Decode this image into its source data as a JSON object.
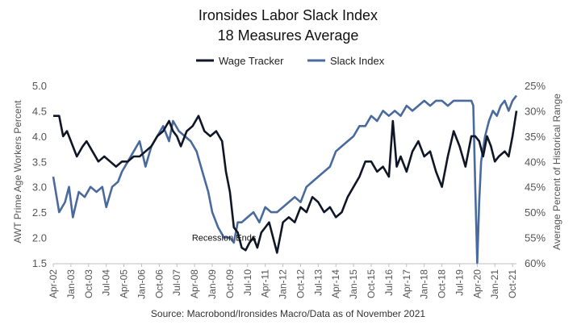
{
  "chart_data": {
    "type": "line",
    "title": "Ironsides Labor Slack Index",
    "subtitle": "18 Measures Average",
    "source": "Source: Macrobond/Ironsides Macro/Data as of November 2021",
    "annotation": "Recession Ends",
    "annotation_point": {
      "date": "2009-07",
      "value": 2.0
    },
    "left_axis": {
      "label": "AWT Prime Age Workers Percent",
      "range": [
        1.5,
        5.0
      ],
      "ticks": [
        "5.0",
        "4.5",
        "4.0",
        "3.5",
        "3.0",
        "2.5",
        "2.0",
        "1.5"
      ],
      "tick_values": [
        5.0,
        4.5,
        4.0,
        3.5,
        3.0,
        2.5,
        2.0,
        1.5
      ]
    },
    "right_axis": {
      "label": "Average Percent of Historical Range",
      "inverted": true,
      "range": [
        25,
        60
      ],
      "ticks": [
        "25%",
        "30%",
        "35%",
        "40%",
        "45%",
        "50%",
        "55%",
        "60%"
      ],
      "tick_values": [
        25,
        30,
        35,
        40,
        45,
        50,
        55,
        60
      ]
    },
    "x_axis": {
      "range": [
        "2002-04",
        "2021-12"
      ],
      "ticks": [
        "Apr-02",
        "Jan-03",
        "Oct-03",
        "Jul-04",
        "Apr-05",
        "Jan-06",
        "Oct-06",
        "Jul-07",
        "Apr-08",
        "Jan-09",
        "Oct-09",
        "Jul-10",
        "Apr-11",
        "Jan-12",
        "Oct-12",
        "Jul-13",
        "Apr-14",
        "Jan-15",
        "Oct-15",
        "Jul-16",
        "Apr-17",
        "Jan-18",
        "Oct-18",
        "Jul-19",
        "Apr-20",
        "Jan-21",
        "Oct-21"
      ],
      "tick_dates": [
        "2002-04",
        "2003-01",
        "2003-10",
        "2004-07",
        "2005-04",
        "2006-01",
        "2006-10",
        "2007-07",
        "2008-04",
        "2009-01",
        "2009-10",
        "2010-07",
        "2011-04",
        "2012-01",
        "2012-10",
        "2013-07",
        "2014-04",
        "2015-01",
        "2015-10",
        "2016-07",
        "2017-04",
        "2018-01",
        "2018-10",
        "2019-07",
        "2020-04",
        "2021-01",
        "2021-10"
      ]
    },
    "legend_position": "top-center",
    "grid": false,
    "series": [
      {
        "name": "Wage Tracker",
        "axis": "left",
        "color": "#0f1626",
        "points": [
          [
            "2002-04",
            4.4
          ],
          [
            "2002-07",
            4.4
          ],
          [
            "2002-09",
            4.0
          ],
          [
            "2002-11",
            4.1
          ],
          [
            "2003-01",
            3.9
          ],
          [
            "2003-04",
            3.6
          ],
          [
            "2003-07",
            3.8
          ],
          [
            "2003-09",
            3.9
          ],
          [
            "2003-12",
            3.7
          ],
          [
            "2004-03",
            3.5
          ],
          [
            "2004-06",
            3.6
          ],
          [
            "2004-09",
            3.5
          ],
          [
            "2004-12",
            3.4
          ],
          [
            "2005-03",
            3.5
          ],
          [
            "2005-06",
            3.5
          ],
          [
            "2005-09",
            3.6
          ],
          [
            "2005-12",
            3.6
          ],
          [
            "2006-03",
            3.7
          ],
          [
            "2006-06",
            3.8
          ],
          [
            "2006-09",
            4.0
          ],
          [
            "2006-12",
            4.1
          ],
          [
            "2007-03",
            4.3
          ],
          [
            "2007-05",
            4.1
          ],
          [
            "2007-07",
            4.0
          ],
          [
            "2007-09",
            3.8
          ],
          [
            "2007-12",
            4.1
          ],
          [
            "2008-03",
            4.2
          ],
          [
            "2008-06",
            4.4
          ],
          [
            "2008-09",
            4.1
          ],
          [
            "2008-12",
            4.0
          ],
          [
            "2009-03",
            4.1
          ],
          [
            "2009-06",
            3.9
          ],
          [
            "2009-08",
            3.3
          ],
          [
            "2009-10",
            2.9
          ],
          [
            "2009-12",
            2.2
          ],
          [
            "2010-02",
            2.1
          ],
          [
            "2010-04",
            1.8
          ],
          [
            "2010-06",
            1.75
          ],
          [
            "2010-08",
            1.9
          ],
          [
            "2010-10",
            2.0
          ],
          [
            "2010-12",
            1.8
          ],
          [
            "2011-02",
            2.1
          ],
          [
            "2011-04",
            2.2
          ],
          [
            "2011-06",
            2.3
          ],
          [
            "2011-08",
            2.0
          ],
          [
            "2011-10",
            1.7
          ],
          [
            "2012-01",
            2.3
          ],
          [
            "2012-04",
            2.4
          ],
          [
            "2012-07",
            2.3
          ],
          [
            "2012-10",
            2.6
          ],
          [
            "2013-01",
            2.5
          ],
          [
            "2013-04",
            2.8
          ],
          [
            "2013-07",
            2.7
          ],
          [
            "2013-10",
            2.5
          ],
          [
            "2014-01",
            2.6
          ],
          [
            "2014-04",
            2.4
          ],
          [
            "2014-07",
            2.5
          ],
          [
            "2014-10",
            2.8
          ],
          [
            "2015-01",
            3.0
          ],
          [
            "2015-04",
            3.2
          ],
          [
            "2015-07",
            3.5
          ],
          [
            "2015-10",
            3.5
          ],
          [
            "2016-01",
            3.3
          ],
          [
            "2016-04",
            3.4
          ],
          [
            "2016-07",
            3.2
          ],
          [
            "2016-09",
            4.3
          ],
          [
            "2016-11",
            3.4
          ],
          [
            "2017-01",
            3.6
          ],
          [
            "2017-04",
            3.3
          ],
          [
            "2017-07",
            3.7
          ],
          [
            "2017-10",
            3.9
          ],
          [
            "2018-01",
            3.6
          ],
          [
            "2018-04",
            3.7
          ],
          [
            "2018-07",
            3.3
          ],
          [
            "2018-10",
            3.0
          ],
          [
            "2019-01",
            3.6
          ],
          [
            "2019-04",
            4.1
          ],
          [
            "2019-07",
            3.8
          ],
          [
            "2019-10",
            3.4
          ],
          [
            "2020-01",
            4.0
          ],
          [
            "2020-03",
            4.0
          ],
          [
            "2020-05",
            3.9
          ],
          [
            "2020-07",
            3.6
          ],
          [
            "2020-09",
            4.0
          ],
          [
            "2020-11",
            3.8
          ],
          [
            "2021-01",
            3.5
          ],
          [
            "2021-03",
            3.6
          ],
          [
            "2021-06",
            3.7
          ],
          [
            "2021-08",
            3.6
          ],
          [
            "2021-10",
            4.0
          ],
          [
            "2021-12",
            4.5
          ]
        ]
      },
      {
        "name": "Slack Index",
        "axis": "right",
        "color": "#4a6a9e",
        "points": [
          [
            "2002-04",
            43
          ],
          [
            "2002-07",
            50
          ],
          [
            "2002-10",
            48
          ],
          [
            "2002-12",
            45
          ],
          [
            "2003-02",
            51
          ],
          [
            "2003-05",
            46
          ],
          [
            "2003-08",
            47
          ],
          [
            "2003-11",
            45
          ],
          [
            "2004-02",
            46
          ],
          [
            "2004-05",
            45
          ],
          [
            "2004-07",
            49
          ],
          [
            "2004-10",
            45
          ],
          [
            "2005-01",
            44
          ],
          [
            "2005-03",
            42
          ],
          [
            "2005-06",
            40
          ],
          [
            "2005-09",
            38
          ],
          [
            "2005-12",
            36
          ],
          [
            "2006-03",
            41
          ],
          [
            "2006-06",
            37
          ],
          [
            "2006-09",
            35
          ],
          [
            "2006-12",
            33
          ],
          [
            "2007-03",
            36
          ],
          [
            "2007-05",
            32
          ],
          [
            "2007-08",
            34
          ],
          [
            "2007-11",
            35
          ],
          [
            "2008-02",
            36
          ],
          [
            "2008-05",
            38
          ],
          [
            "2008-08",
            42
          ],
          [
            "2008-11",
            46
          ],
          [
            "2009-01",
            50
          ],
          [
            "2009-04",
            53
          ],
          [
            "2009-07",
            55
          ],
          [
            "2009-10",
            55
          ],
          [
            "2009-12",
            56
          ],
          [
            "2010-02",
            52
          ],
          [
            "2010-04",
            52
          ],
          [
            "2010-07",
            51
          ],
          [
            "2010-10",
            50
          ],
          [
            "2011-01",
            52
          ],
          [
            "2011-04",
            49
          ],
          [
            "2011-07",
            50
          ],
          [
            "2011-10",
            50
          ],
          [
            "2012-01",
            49
          ],
          [
            "2012-04",
            48
          ],
          [
            "2012-07",
            47
          ],
          [
            "2012-10",
            48
          ],
          [
            "2013-01",
            45
          ],
          [
            "2013-04",
            44
          ],
          [
            "2013-07",
            43
          ],
          [
            "2013-10",
            42
          ],
          [
            "2014-01",
            41
          ],
          [
            "2014-04",
            38
          ],
          [
            "2014-07",
            37
          ],
          [
            "2014-10",
            36
          ],
          [
            "2015-01",
            35
          ],
          [
            "2015-04",
            33
          ],
          [
            "2015-07",
            33
          ],
          [
            "2015-10",
            31
          ],
          [
            "2016-01",
            32
          ],
          [
            "2016-04",
            30
          ],
          [
            "2016-07",
            31
          ],
          [
            "2016-10",
            30
          ],
          [
            "2017-01",
            31
          ],
          [
            "2017-04",
            29
          ],
          [
            "2017-07",
            30
          ],
          [
            "2017-10",
            29
          ],
          [
            "2018-01",
            28
          ],
          [
            "2018-04",
            29
          ],
          [
            "2018-07",
            28
          ],
          [
            "2018-10",
            28
          ],
          [
            "2019-01",
            29
          ],
          [
            "2019-04",
            28
          ],
          [
            "2019-07",
            28
          ],
          [
            "2019-10",
            28
          ],
          [
            "2020-01",
            28
          ],
          [
            "2020-02",
            29
          ],
          [
            "2020-03",
            45
          ],
          [
            "2020-04",
            60
          ],
          [
            "2020-05",
            48
          ],
          [
            "2020-06",
            40
          ],
          [
            "2020-08",
            35
          ],
          [
            "2020-10",
            32
          ],
          [
            "2020-12",
            30
          ],
          [
            "2021-02",
            31
          ],
          [
            "2021-04",
            29
          ],
          [
            "2021-06",
            28
          ],
          [
            "2021-08",
            30
          ],
          [
            "2021-10",
            28
          ],
          [
            "2021-12",
            27
          ]
        ]
      }
    ]
  }
}
